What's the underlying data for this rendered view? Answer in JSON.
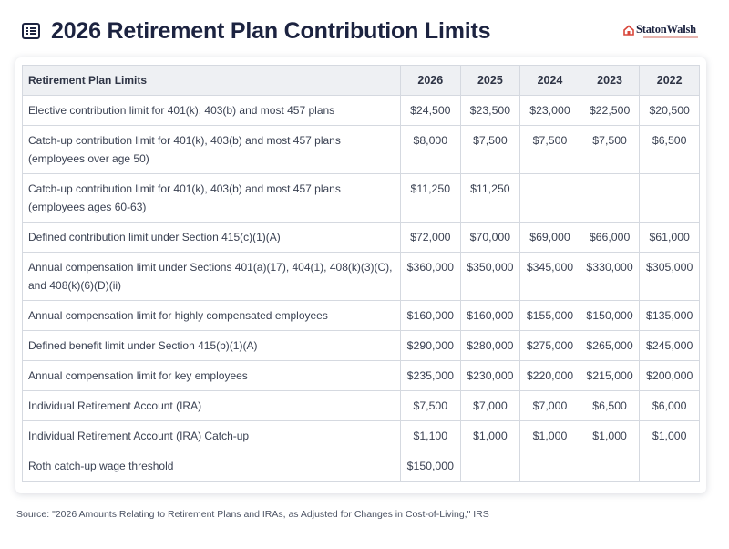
{
  "header": {
    "title": "2026 Retirement Plan Contribution Limits",
    "brand": "StatonWalsh"
  },
  "table": {
    "label_header": "Retirement Plan Limits",
    "years": [
      "2026",
      "2025",
      "2024",
      "2023",
      "2022"
    ],
    "rows": [
      {
        "label": "Elective contribution limit for 401(k), 403(b) and most 457 plans",
        "values": [
          "$24,500",
          "$23,500",
          "$23,000",
          "$22,500",
          "$20,500"
        ]
      },
      {
        "label": "Catch-up contribution limit for 401(k), 403(b) and most 457 plans (employees over age 50)",
        "values": [
          "$8,000",
          "$7,500",
          "$7,500",
          "$7,500",
          "$6,500"
        ]
      },
      {
        "label": "Catch-up contribution limit for 401(k), 403(b) and most 457 plans (employees ages 60-63)",
        "values": [
          "$11,250",
          "$11,250",
          "",
          "",
          ""
        ]
      },
      {
        "label": "Defined contribution limit under Section 415(c)(1)(A)",
        "values": [
          "$72,000",
          "$70,000",
          "$69,000",
          "$66,000",
          "$61,000"
        ]
      },
      {
        "label": "Annual compensation limit under Sections 401(a)(17), 404(1), 408(k)(3)(C), and 408(k)(6)(D)(ii)",
        "values": [
          "$360,000",
          "$350,000",
          "$345,000",
          "$330,000",
          "$305,000"
        ]
      },
      {
        "label": "Annual compensation limit for highly compensated employees",
        "values": [
          "$160,000",
          "$160,000",
          "$155,000",
          "$150,000",
          "$135,000"
        ]
      },
      {
        "label": "Defined benefit limit under Section 415(b)(1)(A)",
        "values": [
          "$290,000",
          "$280,000",
          "$275,000",
          "$265,000",
          "$245,000"
        ]
      },
      {
        "label": "Annual compensation limit for key employees",
        "values": [
          "$235,000",
          "$230,000",
          "$220,000",
          "$215,000",
          "$200,000"
        ]
      },
      {
        "label": "Individual Retirement Account (IRA)",
        "values": [
          "$7,500",
          "$7,000",
          "$7,000",
          "$6,500",
          "$6,000"
        ]
      },
      {
        "label": "Individual Retirement Account (IRA) Catch-up",
        "values": [
          "$1,100",
          "$1,000",
          "$1,000",
          "$1,000",
          "$1,000"
        ]
      },
      {
        "label": "Roth catch-up wage threshold",
        "values": [
          "$150,000",
          "",
          "",
          "",
          ""
        ]
      }
    ]
  },
  "source": "Source: \"2026 Amounts Relating to Retirement Plans and IRAs, as Adjusted for Changes in Cost-of-Living,\" IRS",
  "colors": {
    "title": "#1c2340",
    "brand_accent": "#d9473b",
    "header_bg": "#eef0f3",
    "border": "#d5d9e0"
  }
}
